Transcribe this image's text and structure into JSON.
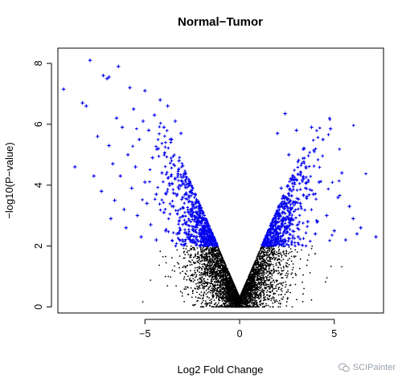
{
  "chart_data": {
    "type": "scatter",
    "title": "Normal−Tumor",
    "xlabel": "Log2 Fold Change",
    "ylabel": "−log10(P−value)",
    "xlim": [
      -9.6,
      7.6
    ],
    "ylim": [
      -0.2,
      8.5
    ],
    "xticks": [
      -5,
      0,
      5
    ],
    "xtick_labels": [
      "−5",
      "0",
      "5"
    ],
    "yticks": [
      0,
      2,
      4,
      6,
      8
    ],
    "ytick_labels": [
      "0",
      "2",
      "4",
      "6",
      "8"
    ],
    "grid": false,
    "legend": "none",
    "significance_threshold_y": 2,
    "colors": {
      "significant": "#0000ee",
      "not_significant": "#000000"
    },
    "series": [
      {
        "marker": "plus",
        "color": "#0000ee",
        "points": [
          [
            -9.3,
            7.15
          ],
          [
            -8.7,
            4.6
          ],
          [
            -8.3,
            6.7
          ],
          [
            -8.1,
            6.6
          ],
          [
            -7.9,
            8.1
          ],
          [
            -7.7,
            4.3
          ],
          [
            -7.5,
            5.6
          ],
          [
            -7.3,
            3.8
          ],
          [
            -7.2,
            7.6
          ],
          [
            -7.0,
            7.5
          ],
          [
            -6.9,
            7.55
          ],
          [
            -6.9,
            5.3
          ],
          [
            -6.8,
            2.9
          ],
          [
            -6.7,
            4.7
          ],
          [
            -6.6,
            3.5
          ],
          [
            -6.5,
            6.2
          ],
          [
            -6.4,
            7.9
          ],
          [
            -6.3,
            4.3
          ],
          [
            -6.2,
            5.9
          ],
          [
            -6.1,
            3.2
          ],
          [
            -6.0,
            2.6
          ],
          [
            -5.9,
            5.0
          ],
          [
            -5.8,
            7.2
          ],
          [
            -5.7,
            3.9
          ],
          [
            -5.6,
            6.5
          ],
          [
            -5.5,
            4.6
          ],
          [
            -5.4,
            3.0
          ],
          [
            -5.3,
            5.5
          ],
          [
            -5.2,
            2.3
          ],
          [
            -5.1,
            6.1
          ],
          [
            -5.0,
            7.1
          ],
          [
            -5.0,
            4.1
          ],
          [
            -4.9,
            3.4
          ],
          [
            -4.8,
            5.8
          ],
          [
            -4.7,
            2.7
          ],
          [
            -4.6,
            4.9
          ],
          [
            -4.5,
            6.3
          ],
          [
            -4.4,
            3.7
          ],
          [
            -4.4,
            2.2
          ],
          [
            -4.3,
            5.2
          ],
          [
            -4.2,
            6.8
          ],
          [
            -4.1,
            4.4
          ],
          [
            -4.0,
            3.1
          ],
          [
            -4.0,
            5.9
          ],
          [
            -3.9,
            2.5
          ],
          [
            -3.8,
            6.6
          ],
          [
            -3.7,
            4.0
          ],
          [
            -3.6,
            5.5
          ],
          [
            -3.5,
            3.3
          ],
          [
            -3.4,
            6.1
          ],
          [
            -3.3,
            2.4
          ],
          [
            -3.2,
            4.8
          ],
          [
            -3.1,
            5.7
          ],
          [
            -3.0,
            3.6
          ]
        ]
      },
      {
        "marker": "plus",
        "color": "#0000ee",
        "points": [
          [
            2.0,
            5.7
          ],
          [
            2.2,
            3.9
          ],
          [
            2.4,
            6.35
          ],
          [
            2.5,
            2.6
          ],
          [
            2.6,
            5.0
          ],
          [
            2.8,
            4.3
          ],
          [
            3.0,
            5.8
          ],
          [
            3.1,
            2.3
          ],
          [
            3.2,
            3.4
          ],
          [
            3.4,
            5.2
          ],
          [
            3.5,
            4.6
          ],
          [
            3.6,
            2.8
          ],
          [
            3.8,
            5.9
          ],
          [
            3.9,
            3.7
          ],
          [
            4.0,
            2.4
          ],
          [
            4.2,
            4.1
          ],
          [
            4.4,
            5.5
          ],
          [
            4.6,
            3.0
          ],
          [
            4.8,
            5.85
          ],
          [
            5.0,
            2.5
          ],
          [
            5.2,
            3.6
          ],
          [
            5.4,
            4.4
          ],
          [
            5.6,
            2.2
          ],
          [
            5.8,
            3.3
          ],
          [
            6.0,
            2.9
          ],
          [
            6.2,
            2.4
          ],
          [
            6.4,
            2.6
          ],
          [
            7.2,
            2.3
          ]
        ]
      }
    ]
  },
  "watermark": {
    "text": "SCIPainter",
    "icon": "wechat-icon"
  }
}
